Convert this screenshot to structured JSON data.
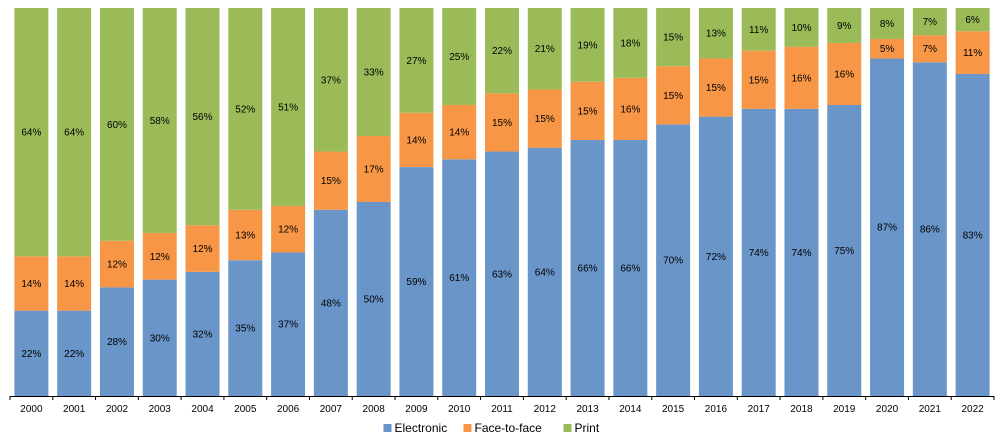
{
  "chart_data": {
    "type": "bar",
    "stacked": true,
    "percent_stacked": true,
    "title": "",
    "xlabel": "",
    "ylabel": "",
    "ylim": [
      0,
      100
    ],
    "categories": [
      "2000",
      "2001",
      "2002",
      "2003",
      "2004",
      "2005",
      "2006",
      "2007",
      "2008",
      "2009",
      "2010",
      "2011",
      "2012",
      "2013",
      "2014",
      "2015",
      "2016",
      "2017",
      "2018",
      "2019",
      "2020",
      "2021",
      "2022"
    ],
    "series": [
      {
        "name": "Electronic",
        "color": "#6a95c9",
        "values": [
          22,
          22,
          28,
          30,
          32,
          35,
          37,
          48,
          50,
          59,
          61,
          63,
          64,
          66,
          66,
          70,
          72,
          74,
          74,
          75,
          87,
          86,
          83
        ]
      },
      {
        "name": "Face-to-face",
        "color": "#f79646",
        "values": [
          14,
          14,
          12,
          12,
          12,
          13,
          12,
          15,
          17,
          14,
          14,
          15,
          15,
          15,
          16,
          15,
          15,
          15,
          16,
          16,
          5,
          7,
          11
        ]
      },
      {
        "name": "Print",
        "color": "#9bbb59",
        "values": [
          64,
          64,
          60,
          58,
          56,
          52,
          51,
          37,
          33,
          27,
          25,
          22,
          21,
          19,
          18,
          15,
          13,
          11,
          10,
          9,
          8,
          7,
          6
        ]
      }
    ],
    "value_suffix": "%",
    "legend_position": "bottom-center",
    "grid": false
  }
}
